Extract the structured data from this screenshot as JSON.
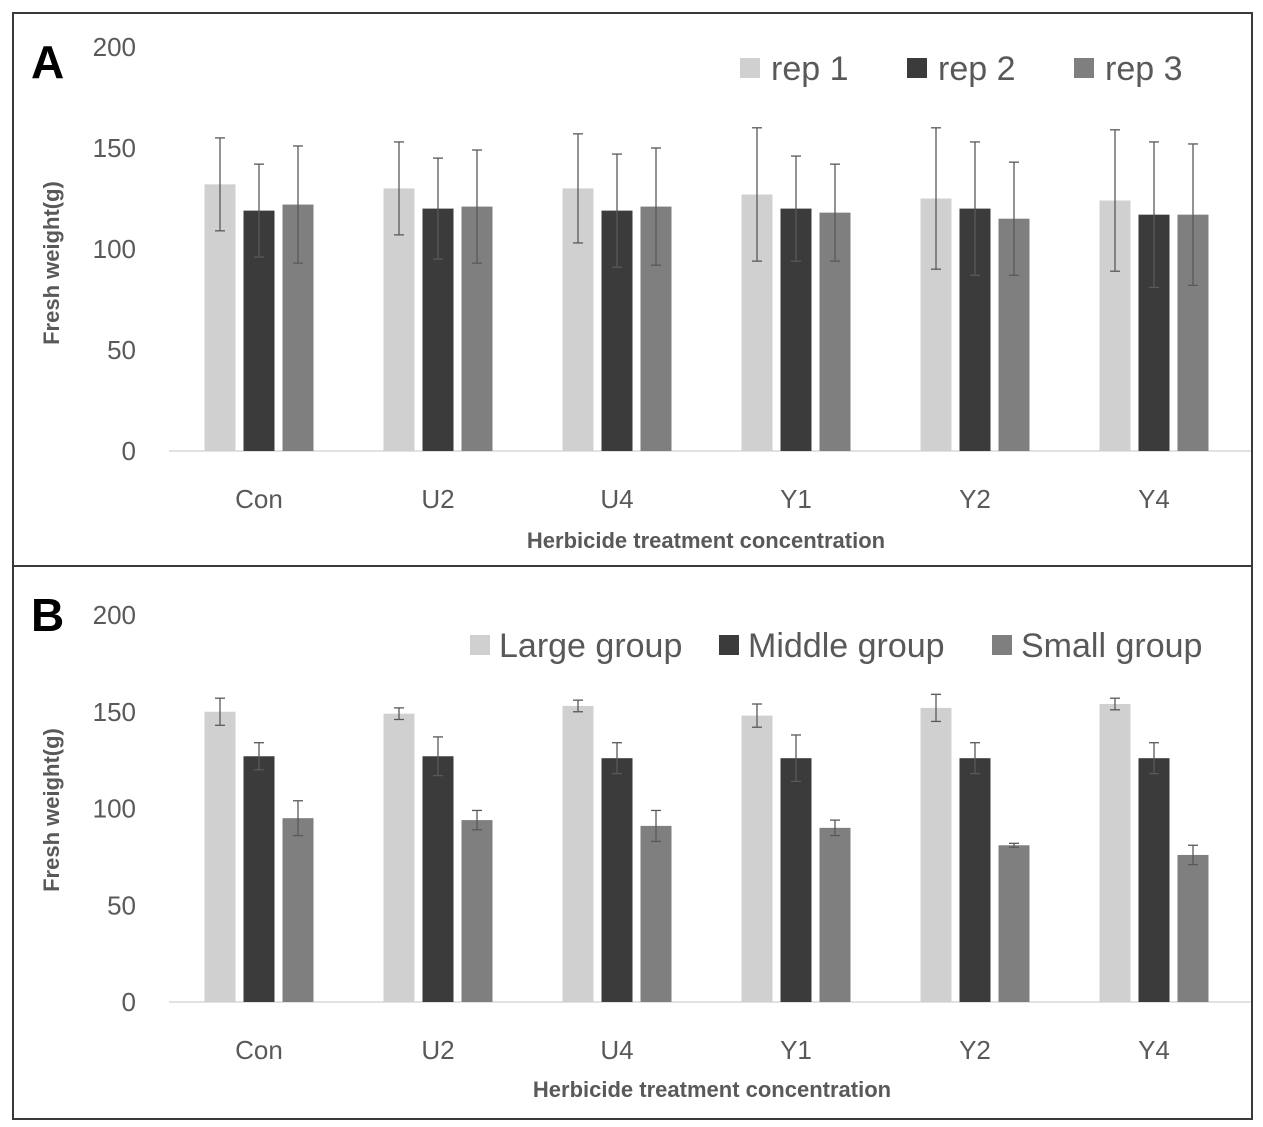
{
  "chart_data": [
    {
      "panel": "A",
      "type": "bar",
      "categories": [
        "Con",
        "U2",
        "U4",
        "Y1",
        "Y2",
        "Y4"
      ],
      "series": [
        {
          "name": "rep 1",
          "values": [
            132,
            130,
            130,
            127,
            125,
            124
          ],
          "errors": [
            23,
            23,
            27,
            33,
            35,
            35
          ],
          "color": "#d0d0d0"
        },
        {
          "name": "rep 2",
          "values": [
            119,
            120,
            119,
            120,
            120,
            117
          ],
          "errors": [
            23,
            25,
            28,
            26,
            33,
            36
          ],
          "color": "#3b3b3b"
        },
        {
          "name": "rep 3",
          "values": [
            122,
            121,
            121,
            118,
            115,
            117
          ],
          "errors": [
            29,
            28,
            29,
            24,
            28,
            35
          ],
          "color": "#7f7f7f"
        }
      ],
      "xlabel": "Herbicide treatment concentration",
      "ylabel": "Fresh weight(g)",
      "ylim": [
        0,
        200
      ],
      "yticks": [
        0,
        50,
        100,
        150,
        200
      ],
      "grid": false,
      "legend": "top-right"
    },
    {
      "panel": "B",
      "type": "bar",
      "categories": [
        "Con",
        "U2",
        "U4",
        "Y1",
        "Y2",
        "Y4"
      ],
      "series": [
        {
          "name": "Large group",
          "values": [
            150,
            149,
            153,
            148,
            152,
            154
          ],
          "errors": [
            7,
            3,
            3,
            6,
            7,
            3
          ],
          "color": "#d0d0d0"
        },
        {
          "name": "Middle group",
          "values": [
            127,
            127,
            126,
            126,
            126,
            126
          ],
          "errors": [
            7,
            10,
            8,
            12,
            8,
            8
          ],
          "color": "#3b3b3b"
        },
        {
          "name": "Small group",
          "values": [
            95,
            94,
            91,
            90,
            81,
            76
          ],
          "errors": [
            9,
            5,
            8,
            4,
            1,
            5
          ],
          "color": "#7f7f7f"
        }
      ],
      "xlabel": "Herbicide treatment concentration",
      "ylabel": "Fresh weight(g)",
      "ylim": [
        0,
        200
      ],
      "yticks": [
        0,
        50,
        100,
        150,
        200
      ],
      "grid": false,
      "legend": "top-right"
    }
  ]
}
